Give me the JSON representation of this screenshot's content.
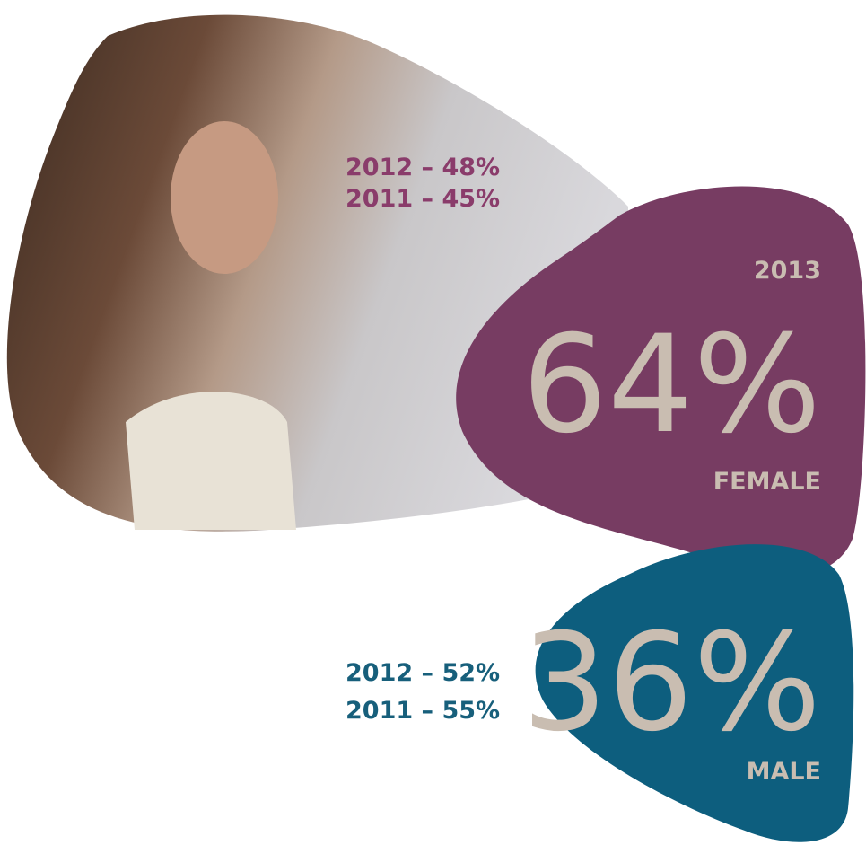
{
  "female": {
    "history": [
      "2012 – 48%",
      "2011 – 45%"
    ],
    "year": "2013",
    "value": "64%",
    "label": "FEMALE"
  },
  "male": {
    "history": [
      "2012 – 52%",
      "2011 – 55%"
    ],
    "value": "36%",
    "label": "MALE"
  }
}
